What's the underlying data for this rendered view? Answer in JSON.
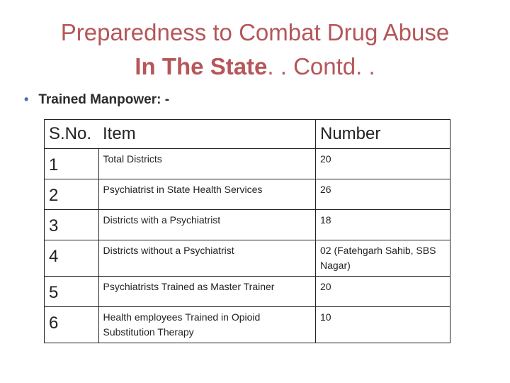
{
  "title": {
    "line1": "Preparedness to Combat Drug Abuse",
    "line2_bold": "In The State",
    "line2_rest": ". . Contd. ."
  },
  "bullet": {
    "symbol": "•",
    "text": "Trained Manpower: -"
  },
  "table": {
    "headers": [
      "S.No.",
      "Item",
      "Number"
    ],
    "rows": [
      {
        "sno": "1",
        "item": "Total Districts",
        "number": "20"
      },
      {
        "sno": "2",
        "item": "Psychiatrist in State Health Services",
        "number": "26"
      },
      {
        "sno": "3",
        "item": "Districts with a  Psychiatrist",
        "number": "18"
      },
      {
        "sno": "4",
        "item": "Districts without a Psychiatrist",
        "number": "02 (Fatehgarh Sahib, SBS Nagar)"
      },
      {
        "sno": "5",
        "item": "Psychiatrists Trained as Master Trainer",
        "number": "20"
      },
      {
        "sno": "6",
        "item": "Health employees Trained in Opioid Substitution Therapy",
        "number": "10"
      }
    ]
  },
  "colors": {
    "title": "#b5565a",
    "bullet": "#4a6fb5",
    "text": "#222222"
  }
}
